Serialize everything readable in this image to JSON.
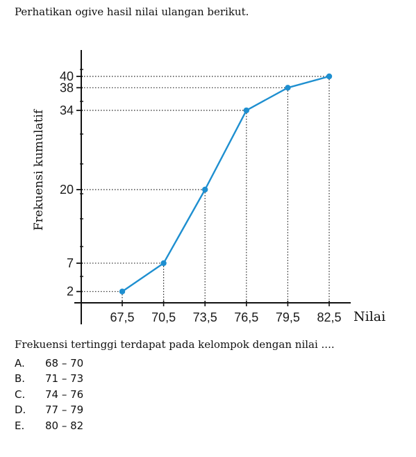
{
  "intro_text": "Perhatikan ogive hasil nilai ulangan berikut.",
  "chart_data": {
    "type": "line",
    "title": "",
    "xlabel": "Nilai",
    "ylabel": "Frekuensi kumulatif",
    "x": [
      "67,5",
      "70,5",
      "73,5",
      "76,5",
      "79,5",
      "82,5"
    ],
    "y": [
      2,
      7,
      20,
      34,
      38,
      40
    ],
    "ylim": [
      0,
      40
    ],
    "line_color": "#1e8fd0",
    "guide_lines": "dotted"
  },
  "question": {
    "text": "Frekuensi tertinggi terdapat pada kelompok dengan nilai ....",
    "options": [
      {
        "letter": "A.",
        "text": "68 – 70"
      },
      {
        "letter": "B.",
        "text": "71 – 73"
      },
      {
        "letter": "C.",
        "text": "74 – 76"
      },
      {
        "letter": "D.",
        "text": "77 – 79"
      },
      {
        "letter": "E.",
        "text": "80 – 82"
      }
    ]
  }
}
